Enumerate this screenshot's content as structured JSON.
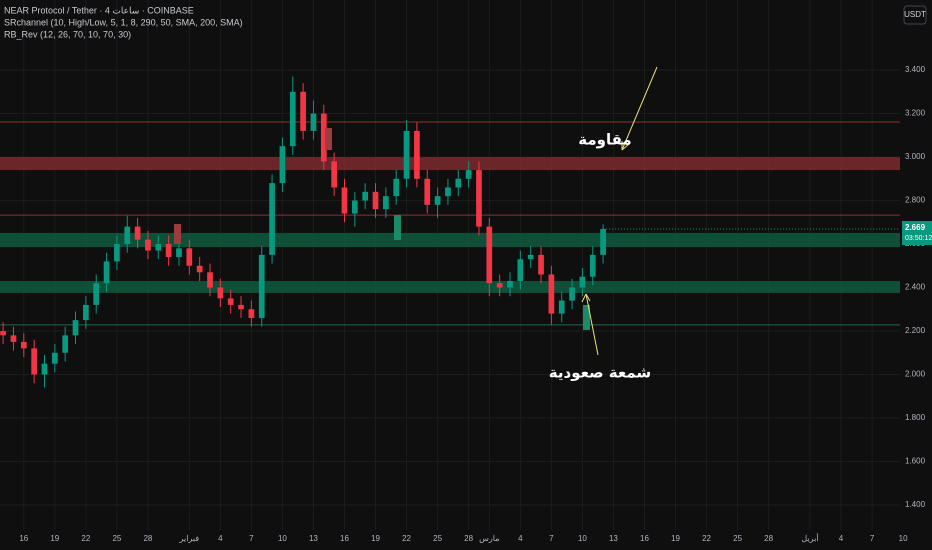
{
  "chart_data": {
    "type": "candlestick",
    "title": "NEAR Protocol / Tether · 4 ساعات · COINBASE",
    "indicators": [
      "SRchannel (10, High/Low, 5, 1, 8, 290, 50, SMA, 200, SMA)",
      "RB_Rev (12, 26, 70, 10, 70, 30)"
    ],
    "currency": "USDT",
    "countdown": "03:50:12",
    "up_color": "#089981",
    "down_color": "#f23645",
    "grid": true,
    "x": [
      -2,
      -1,
      0,
      1,
      2,
      3,
      4,
      5,
      6,
      7,
      8,
      9,
      10,
      11,
      12,
      13,
      14,
      15,
      16,
      17,
      18,
      19,
      20,
      21,
      22,
      23,
      24,
      25,
      26,
      27,
      28,
      29,
      30,
      31,
      32,
      33,
      34,
      35,
      36,
      37,
      38,
      39,
      40,
      41,
      42,
      43,
      44,
      45,
      46,
      47,
      48,
      49,
      50,
      51,
      52,
      53,
      54,
      55,
      56
    ],
    "open": [
      2.2,
      2.18,
      2.15,
      2.12,
      2.0,
      2.05,
      2.1,
      2.18,
      2.25,
      2.32,
      2.42,
      2.52,
      2.6,
      2.68,
      2.62,
      2.57,
      2.6,
      2.54,
      2.58,
      2.5,
      2.47,
      2.4,
      2.35,
      2.32,
      2.3,
      2.26,
      2.55,
      2.88,
      3.05,
      3.3,
      3.12,
      3.2,
      2.98,
      2.86,
      2.74,
      2.8,
      2.84,
      2.76,
      2.82,
      2.9,
      3.12,
      2.9,
      2.78,
      2.82,
      2.86,
      2.9,
      2.94,
      2.68,
      2.42,
      2.4,
      2.43,
      2.53,
      2.55,
      2.46,
      2.28,
      2.34,
      2.4,
      2.45,
      2.55
    ],
    "high": [
      2.24,
      2.22,
      2.19,
      2.16,
      2.09,
      2.14,
      2.22,
      2.29,
      2.36,
      2.46,
      2.56,
      2.64,
      2.73,
      2.72,
      2.66,
      2.64,
      2.64,
      2.62,
      2.62,
      2.54,
      2.51,
      2.44,
      2.39,
      2.36,
      2.34,
      2.59,
      2.92,
      3.09,
      3.37,
      3.34,
      3.26,
      3.24,
      3.02,
      2.9,
      2.84,
      2.88,
      2.88,
      2.86,
      2.94,
      3.17,
      3.16,
      2.94,
      2.86,
      2.9,
      2.94,
      2.98,
      2.98,
      2.72,
      2.46,
      2.47,
      2.57,
      2.59,
      2.59,
      2.5,
      2.38,
      2.44,
      2.49,
      2.59,
      2.69
    ],
    "low": [
      2.14,
      2.11,
      2.08,
      1.96,
      1.94,
      2.01,
      2.06,
      2.14,
      2.21,
      2.28,
      2.38,
      2.48,
      2.56,
      2.58,
      2.53,
      2.53,
      2.5,
      2.5,
      2.46,
      2.43,
      2.36,
      2.31,
      2.28,
      2.26,
      2.22,
      2.22,
      2.51,
      2.84,
      3.01,
      3.08,
      3.08,
      2.94,
      2.82,
      2.7,
      2.68,
      2.76,
      2.72,
      2.72,
      2.78,
      2.86,
      2.86,
      2.74,
      2.72,
      2.78,
      2.82,
      2.86,
      2.64,
      2.36,
      2.36,
      2.36,
      2.39,
      2.49,
      2.42,
      2.23,
      2.24,
      2.3,
      2.36,
      2.41,
      2.51
    ],
    "close": [
      2.18,
      2.15,
      2.12,
      2.0,
      2.05,
      2.1,
      2.18,
      2.25,
      2.32,
      2.42,
      2.52,
      2.6,
      2.68,
      2.62,
      2.57,
      2.6,
      2.54,
      2.58,
      2.5,
      2.47,
      2.4,
      2.35,
      2.32,
      2.3,
      2.26,
      2.55,
      2.88,
      3.05,
      3.3,
      3.12,
      3.2,
      2.98,
      2.86,
      2.74,
      2.8,
      2.84,
      2.76,
      2.82,
      2.9,
      3.12,
      2.9,
      2.78,
      2.82,
      2.86,
      2.9,
      2.94,
      2.68,
      2.42,
      2.4,
      2.43,
      2.53,
      2.55,
      2.46,
      2.28,
      2.34,
      2.4,
      2.45,
      2.55,
      2.669
    ],
    "zones": [
      {
        "from": 3.0,
        "to": 2.94,
        "color": "#7a2a2e"
      },
      {
        "from": 2.651,
        "to": 2.586,
        "color": "#0f5a3e"
      },
      {
        "from": 2.43,
        "to": 2.375,
        "color": "#0f5a3e"
      }
    ],
    "levels": [
      {
        "value": 3.161,
        "color": "#8f2f35"
      },
      {
        "value": 2.733,
        "color": "#8f2f35"
      },
      {
        "value": 2.228,
        "color": "#1d6b4c"
      }
    ],
    "annotations": [
      "مقاومة",
      "شمعة صعودية"
    ],
    "xlim": [
      -2.3,
      84.7
    ],
    "ylim": [
      1.285,
      3.722
    ],
    "yticks": [
      {
        "value": 1.4,
        "label": "1.400"
      },
      {
        "value": 1.6,
        "label": "1.600"
      },
      {
        "value": 1.8,
        "label": "1.800"
      },
      {
        "value": 2.0,
        "label": "2.000"
      },
      {
        "value": 2.2,
        "label": "2.200"
      },
      {
        "value": 2.4,
        "label": "2.400"
      },
      {
        "value": 2.6,
        "label": "2.600"
      },
      {
        "value": 2.8,
        "label": "2.800"
      },
      {
        "value": 3.0,
        "label": "3.000"
      },
      {
        "value": 3.2,
        "label": "3.200"
      },
      {
        "value": 3.4,
        "label": "3.400"
      }
    ],
    "xticks": [
      {
        "value": 0,
        "label": "16"
      },
      {
        "value": 3,
        "label": "19"
      },
      {
        "value": 6,
        "label": "22"
      },
      {
        "value": 9,
        "label": "25"
      },
      {
        "value": 12,
        "label": "28"
      },
      {
        "value": 16,
        "label": "فبراير"
      },
      {
        "value": 19,
        "label": "4"
      },
      {
        "value": 22,
        "label": "7"
      },
      {
        "value": 25,
        "label": "10"
      },
      {
        "value": 28,
        "label": "13"
      },
      {
        "value": 31,
        "label": "16"
      },
      {
        "value": 34,
        "label": "19"
      },
      {
        "value": 37,
        "label": "22"
      },
      {
        "value": 40,
        "label": "25"
      },
      {
        "value": 43,
        "label": "28"
      },
      {
        "value": 45,
        "label": "مارس"
      },
      {
        "value": 48,
        "label": "4"
      },
      {
        "value": 51,
        "label": "7"
      },
      {
        "value": 54,
        "label": "10"
      },
      {
        "value": 57,
        "label": "13"
      },
      {
        "value": 60,
        "label": "16"
      },
      {
        "value": 63,
        "label": "19"
      },
      {
        "value": 66,
        "label": "22"
      },
      {
        "value": 69,
        "label": "25"
      },
      {
        "value": 72,
        "label": "28"
      },
      {
        "value": 76,
        "label": "أبريل"
      },
      {
        "value": 79,
        "label": "4"
      },
      {
        "value": 82,
        "label": "7"
      },
      {
        "value": 85,
        "label": "10"
      }
    ]
  }
}
